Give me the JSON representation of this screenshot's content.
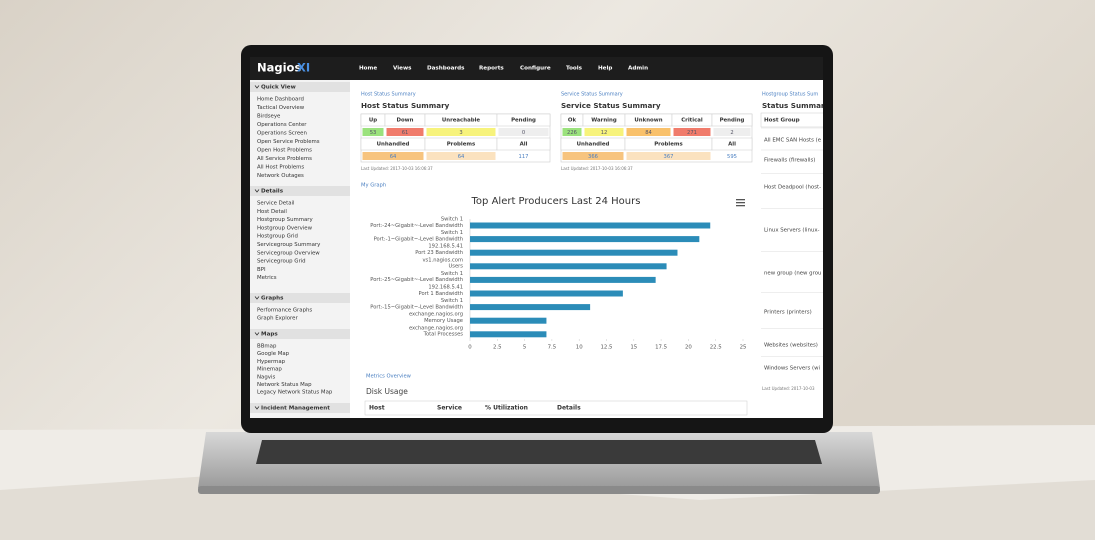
{
  "nav": {
    "logo": "Nagios",
    "logo_suffix": "XI",
    "items": [
      "Home",
      "Views",
      "Dashboards",
      "Reports",
      "Configure",
      "Tools",
      "Help",
      "Admin"
    ]
  },
  "sidebar": [
    {
      "title": "Quick View",
      "items": [
        "Home Dashboard",
        "Tactical Overview",
        "Birdseye",
        "Operations Center",
        "Operations Screen",
        "Open Service Problems",
        "Open Host Problems",
        "All Service Problems",
        "All Host Problems",
        "Network Outages"
      ]
    },
    {
      "title": "Details",
      "items": [
        "Service Detail",
        "Host Detail",
        "Hostgroup Summary",
        "Hostgroup Overview",
        "Hostgroup Grid",
        "Servicegroup Summary",
        "Servicegroup Overview",
        "Servicegroup Grid",
        "BPI",
        "Metrics"
      ]
    },
    {
      "title": "Graphs",
      "items": [
        "Performance Graphs",
        "Graph Explorer"
      ]
    },
    {
      "title": "Maps",
      "items": [
        "BBmap",
        "Google Map",
        "Hypermap",
        "Minemap",
        "Nagvis",
        "Network Status Map",
        "Legacy Network Status Map"
      ]
    },
    {
      "title": "Incident Management",
      "items": []
    }
  ],
  "host_status": {
    "link": "Host Status Summary",
    "title": "Host Status Summary",
    "headers": [
      "Up",
      "Down",
      "Unreachable",
      "Pending"
    ],
    "counts": [
      53,
      61,
      3,
      0
    ],
    "subheaders": [
      "Unhandled",
      "Problems",
      "All"
    ],
    "subcounts": [
      64,
      64,
      117
    ],
    "updated": "Last Updated: 2017-10-03 16:06:37"
  },
  "service_status": {
    "link": "Service Status Summary",
    "title": "Service Status Summary",
    "headers": [
      "Ok",
      "Warning",
      "Unknown",
      "Critical",
      "Pending"
    ],
    "counts": [
      226,
      12,
      84,
      271,
      2
    ],
    "subheaders": [
      "Unhandled",
      "Problems",
      "All"
    ],
    "subcounts": [
      366,
      367,
      595
    ],
    "updated": "Last Updated: 2017-10-03 16:06:37"
  },
  "hostgroup": {
    "link": "Hostgroup Status Sum",
    "title": "Status Summary",
    "header": "Host Group",
    "rows": [
      "All EMC SAN Hosts (e",
      "Firewalls (firewalls)",
      "Host Deadpool (host-",
      "Linux Servers (linux-",
      "new group (new grou",
      "Printers (printers)",
      "Websites (websites)",
      "Windows Servers (wi"
    ],
    "updated": "Last Updated: 2017-10-03"
  },
  "graph": {
    "label": "My Graph",
    "type": "bar",
    "title": "Top Alert Producers Last 24 Hours",
    "categories": [
      [
        "Switch 1",
        "Port:-24~Gigabit~-Level Bandwidth"
      ],
      [
        "Switch 1",
        "Port:-1~Gigabit~-Level Bandwidth"
      ],
      [
        "192.168.5.41",
        "Port 23 Bandwidth"
      ],
      [
        "vs1.nagios.com",
        "Users"
      ],
      [
        "Switch 1",
        "Port:-25~Gigabit~-Level Bandwidth"
      ],
      [
        "192.168.5.41",
        "Port 1 Bandwidth"
      ],
      [
        "Switch 1",
        "Port:-15~Gigabit~-Level Bandwidth"
      ],
      [
        "exchange.nagios.org",
        "Memory Usage"
      ],
      [
        "exchange.nagios.org",
        "Total Processes"
      ]
    ],
    "values": [
      22,
      21,
      19,
      18,
      17,
      14,
      11,
      7,
      7
    ],
    "color": "#2b8cb8",
    "xlim": [
      0,
      25
    ],
    "xticks": [
      0,
      2.5,
      5,
      7.5,
      10,
      12.5,
      15,
      17.5,
      20,
      22.5,
      25
    ]
  },
  "metrics": {
    "link": "Metrics Overview",
    "title": "Disk Usage",
    "headers": [
      "Host",
      "Service",
      "% Utilization",
      "Details"
    ]
  }
}
